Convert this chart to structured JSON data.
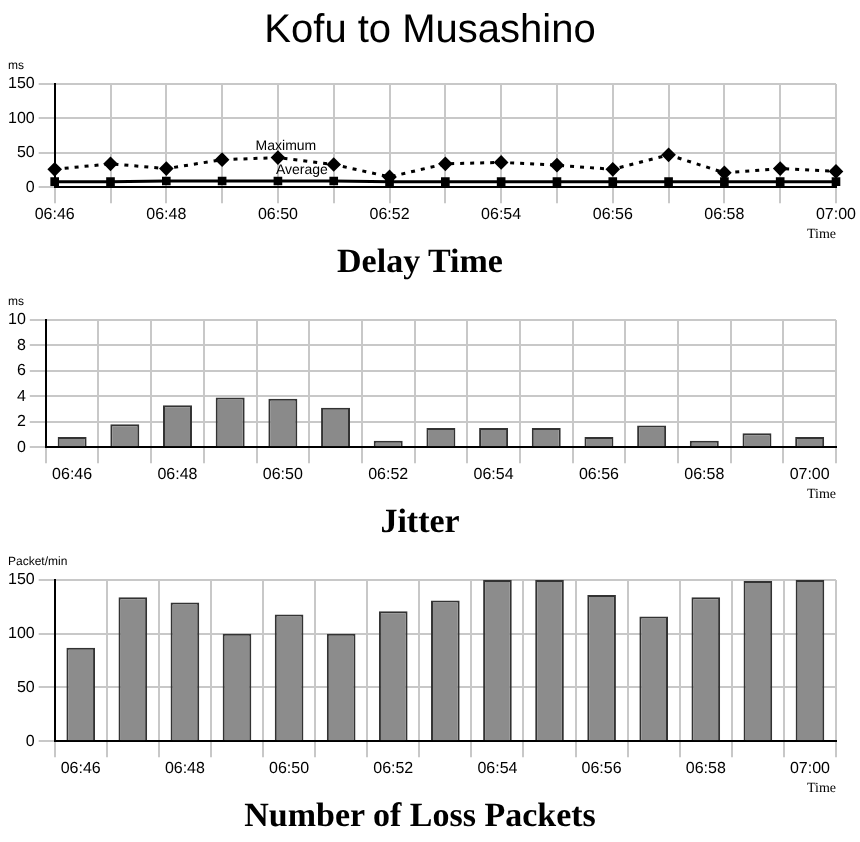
{
  "chart_data": [
    {
      "type": "other",
      "title": "Kofu to Musashino"
    },
    {
      "type": "line",
      "title": "Delay Time",
      "ylabel": "ms",
      "xlabel": "Time",
      "categories": [
        "06:46",
        null,
        "06:48",
        null,
        "06:50",
        null,
        "06:52",
        null,
        "06:54",
        null,
        "06:56",
        null,
        "06:58",
        null,
        "07:00"
      ],
      "series": [
        {
          "name": "Maximum",
          "color": "#000000",
          "marker": "diamond",
          "line_style": "dotted",
          "values": [
            26,
            34,
            27,
            40,
            43,
            33,
            15,
            34,
            36,
            32,
            26,
            47,
            21,
            27,
            23
          ]
        },
        {
          "name": "Average",
          "color": "#000000",
          "marker": "square",
          "line_style": "solid",
          "values": [
            8,
            8,
            9,
            9,
            9,
            9,
            8,
            8,
            8,
            8,
            8,
            8,
            8,
            8,
            8
          ]
        }
      ],
      "ylim": [
        0,
        150
      ],
      "yticks": [
        0,
        50,
        100,
        150
      ],
      "grid": true,
      "legend": false
    },
    {
      "type": "bar",
      "title": "Jitter",
      "ylabel": "ms",
      "xlabel": "Time",
      "categories": [
        "06:46",
        null,
        "06:48",
        null,
        "06:50",
        null,
        "06:52",
        null,
        "06:54",
        null,
        "06:56",
        null,
        "06:58",
        null,
        "07:00"
      ],
      "series": [
        {
          "color": "#8a8a8a",
          "values": [
            0.8,
            1.8,
            3.3,
            3.9,
            3.8,
            3.1,
            0.5,
            1.5,
            1.5,
            1.5,
            0.8,
            1.7,
            0.5,
            1.1,
            0.8
          ]
        }
      ],
      "ylim": [
        0,
        10
      ],
      "yticks": [
        0,
        2,
        4,
        6,
        8,
        10
      ],
      "grid": true,
      "legend": false
    },
    {
      "type": "bar",
      "title": "Number of Loss Packets",
      "ylabel": "Packet/min",
      "xlabel": "Time",
      "categories": [
        "06:46",
        null,
        "06:48",
        null,
        "06:50",
        null,
        "06:52",
        null,
        "06:54",
        null,
        "06:56",
        null,
        "06:58",
        null,
        "07:00"
      ],
      "series": [
        {
          "color": "#8c8c8c",
          "values": [
            87,
            134,
            129,
            100,
            118,
            100,
            121,
            131,
            150,
            150,
            136,
            116,
            134,
            149,
            150
          ]
        }
      ],
      "ylim": [
        0,
        150
      ],
      "yticks": [
        0,
        50,
        100,
        150
      ],
      "grid": true,
      "legend": false
    }
  ]
}
